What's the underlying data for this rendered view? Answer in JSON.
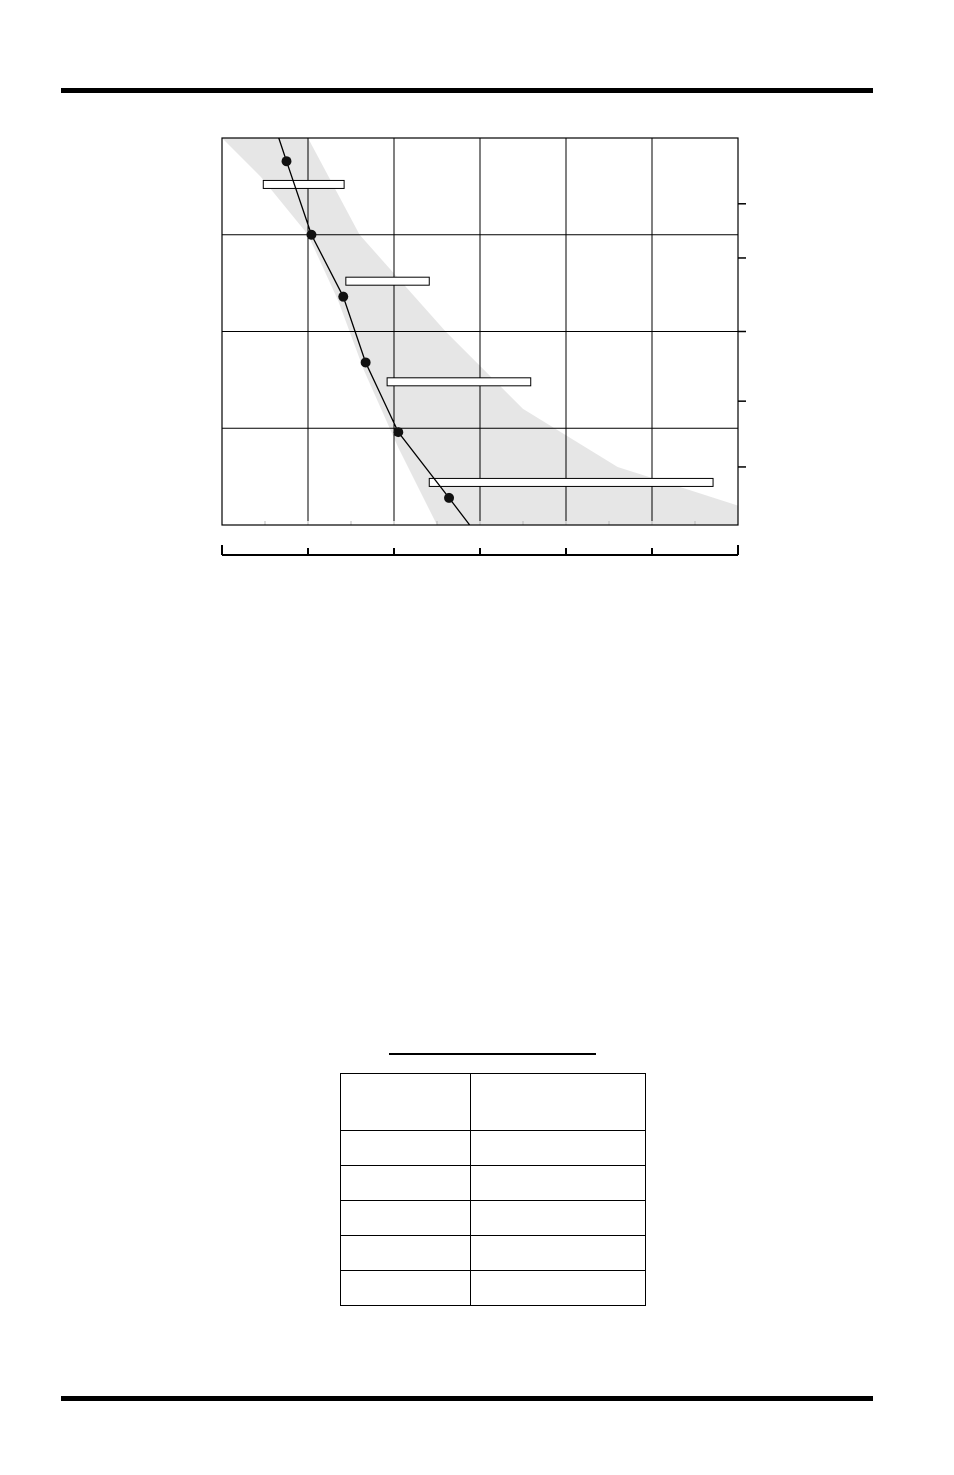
{
  "chart_data": {
    "type": "line",
    "title": "",
    "xlabel": "",
    "ylabel": "",
    "x_tick_labels": [],
    "y_tick_labels": [],
    "grid": true,
    "fill_color": "#e6e6e6",
    "line_color": "#000000",
    "series": [
      {
        "values": [
          {
            "x": 0.75,
            "y": 0.06
          },
          {
            "x": 1.04,
            "y": 0.25
          },
          {
            "x": 1.41,
            "y": 0.41
          },
          {
            "x": 1.67,
            "y": 0.58
          },
          {
            "x": 2.05,
            "y": 0.76
          },
          {
            "x": 2.64,
            "y": 0.93
          }
        ]
      }
    ],
    "range_bars": [
      {
        "x_start": 0.48,
        "x_end": 1.42,
        "y": 0.12
      },
      {
        "x_start": 1.44,
        "y_end": 0,
        "x_end": 2.41,
        "y": 0.37
      },
      {
        "x_start": 1.92,
        "x_end": 3.59,
        "y": 0.63
      },
      {
        "x_start": 2.41,
        "x_end": 5.71,
        "y": 0.89
      }
    ],
    "envelope": {
      "left": [
        {
          "x": 0.0,
          "y": 0.0
        },
        {
          "x": 0.45,
          "y": 0.1
        },
        {
          "x": 1.0,
          "y": 0.25
        },
        {
          "x": 1.35,
          "y": 0.42
        },
        {
          "x": 1.65,
          "y": 0.6
        },
        {
          "x": 2.05,
          "y": 0.8
        },
        {
          "x": 2.5,
          "y": 1.0
        }
      ],
      "right": [
        {
          "x": 1.0,
          "y": 0.0
        },
        {
          "x": 1.6,
          "y": 0.25
        },
        {
          "x": 2.6,
          "y": 0.5
        },
        {
          "x": 3.5,
          "y": 0.7
        },
        {
          "x": 4.6,
          "y": 0.85
        },
        {
          "x": 6.0,
          "y": 0.95
        },
        {
          "x": 6.0,
          "y": 1.0
        }
      ]
    },
    "xlim": [
      0,
      6
    ],
    "ylim": [
      0,
      1
    ]
  },
  "table": {
    "headers": [
      "",
      ""
    ],
    "rows": [
      [
        "",
        ""
      ],
      [
        "",
        ""
      ],
      [
        "",
        ""
      ],
      [
        "",
        ""
      ],
      [
        "",
        ""
      ]
    ]
  }
}
